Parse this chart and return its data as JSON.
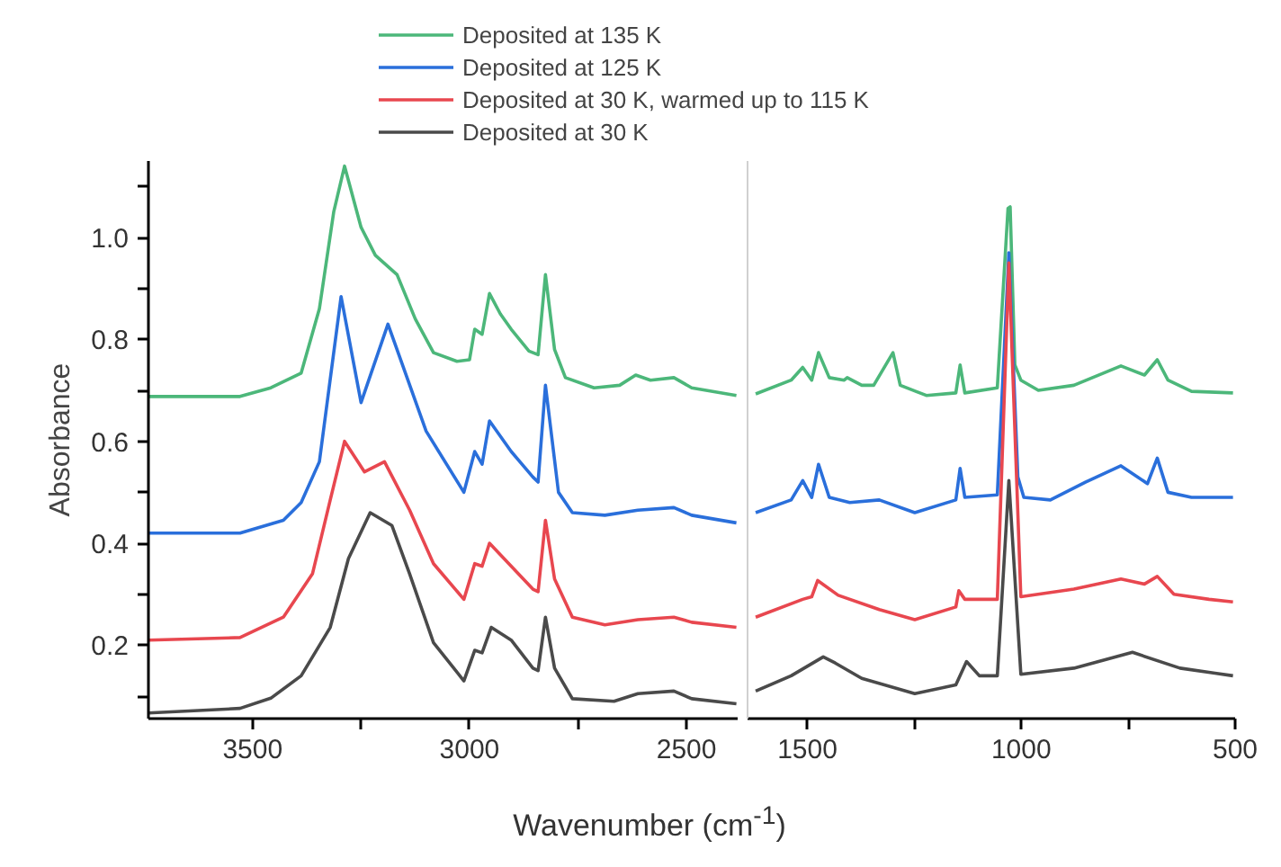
{
  "chart_data": [
    {
      "type": "line",
      "xlabel": "Wavenumber (cm$^{-1}$)",
      "ylabel": "Absorbance",
      "xlim": [
        3740,
        2380
      ],
      "ylim": [
        0.056,
        1.15
      ],
      "xticks": [
        3500,
        {
          "value": 3250,
          "label": null
        },
        3000,
        {
          "value": 2750,
          "label": null
        },
        2500
      ],
      "yticks": [
        {
          "value": 0.1,
          "label": null
        },
        0.2,
        {
          "value": 0.3,
          "label": null
        },
        0.4,
        {
          "value": 0.5,
          "label": null
        },
        0.6,
        {
          "value": 0.7,
          "label": null
        },
        0.8,
        {
          "value": 0.9,
          "label": null
        },
        {
          "value": 1.0,
          "label": "1.0"
        },
        {
          "value": 1.1,
          "label": null
        }
      ],
      "legend": "top",
      "grid": false,
      "series": [
        {
          "name": "Deposited at 135 K",
          "color": "#4cb77a",
          "x": [
            3740,
            3529,
            3458,
            3388,
            3346,
            3313,
            3288,
            3250,
            3217,
            3167,
            3125,
            3083,
            3029,
            3000,
            2988,
            2971,
            2954,
            2929,
            2904,
            2863,
            2842,
            2825,
            2804,
            2779,
            2713,
            2654,
            2617,
            2583,
            2529,
            2488,
            2385
          ],
          "values": [
            0.688,
            0.688,
            0.705,
            0.734,
            0.86,
            1.05,
            1.14,
            1.02,
            0.965,
            0.927,
            0.84,
            0.774,
            0.757,
            0.76,
            0.82,
            0.81,
            0.89,
            0.85,
            0.82,
            0.777,
            0.77,
            0.927,
            0.78,
            0.725,
            0.705,
            0.71,
            0.73,
            0.72,
            0.725,
            0.705,
            0.69
          ]
        },
        {
          "name": "Deposited at 125 K",
          "color": "#2a6fdb",
          "x": [
            3740,
            3529,
            3429,
            3388,
            3346,
            3296,
            3250,
            3188,
            3100,
            3013,
            2988,
            2971,
            2954,
            2904,
            2854,
            2842,
            2825,
            2795,
            2763,
            2688,
            2612,
            2529,
            2488,
            2385
          ],
          "values": [
            0.42,
            0.42,
            0.445,
            0.48,
            0.56,
            0.884,
            0.676,
            0.83,
            0.62,
            0.5,
            0.58,
            0.555,
            0.64,
            0.58,
            0.53,
            0.52,
            0.71,
            0.5,
            0.46,
            0.455,
            0.465,
            0.47,
            0.455,
            0.44
          ]
        },
        {
          "name": "Deposited at 30 K, warmed up to 115 K",
          "color": "#e8474f",
          "x": [
            3740,
            3529,
            3429,
            3362,
            3321,
            3288,
            3242,
            3196,
            3138,
            3083,
            3013,
            2988,
            2971,
            2954,
            2904,
            2854,
            2842,
            2825,
            2804,
            2763,
            2688,
            2612,
            2529,
            2488,
            2385
          ],
          "values": [
            0.21,
            0.215,
            0.255,
            0.34,
            0.485,
            0.6,
            0.54,
            0.56,
            0.465,
            0.36,
            0.29,
            0.36,
            0.355,
            0.4,
            0.355,
            0.31,
            0.305,
            0.445,
            0.33,
            0.255,
            0.24,
            0.25,
            0.255,
            0.245,
            0.235
          ]
        },
        {
          "name": "Deposited at 30 K",
          "color": "#4a4a4a",
          "x": [
            3740,
            3529,
            3458,
            3388,
            3321,
            3279,
            3229,
            3179,
            3138,
            3083,
            3013,
            2988,
            2971,
            2950,
            2904,
            2854,
            2842,
            2825,
            2804,
            2763,
            2667,
            2612,
            2529,
            2488,
            2385
          ],
          "values": [
            0.067,
            0.076,
            0.096,
            0.14,
            0.235,
            0.37,
            0.46,
            0.435,
            0.34,
            0.205,
            0.13,
            0.19,
            0.185,
            0.235,
            0.21,
            0.155,
            0.15,
            0.255,
            0.155,
            0.095,
            0.09,
            0.105,
            0.11,
            0.095,
            0.085
          ]
        }
      ]
    },
    {
      "type": "line",
      "xlim": [
        1640,
        500
      ],
      "ylim": [
        0.056,
        1.15
      ],
      "tick_labels": "x",
      "grid": false,
      "xticks": [
        1500,
        {
          "value": 1250,
          "label": null
        },
        1000,
        {
          "value": 750,
          "label": null
        },
        500
      ],
      "series": [
        {
          "color": "#4cb77a",
          "x": [
            1621,
            1538,
            1511,
            1490,
            1474,
            1449,
            1414,
            1407,
            1373,
            1345,
            1300,
            1283,
            1222,
            1153,
            1143,
            1132,
            1056,
            1031,
            1026,
            1015,
            1001,
            960,
            877,
            767,
            712,
            682,
            657,
            602,
            505
          ],
          "values": [
            0.693,
            0.72,
            0.745,
            0.72,
            0.774,
            0.725,
            0.72,
            0.725,
            0.71,
            0.71,
            0.774,
            0.71,
            0.69,
            0.695,
            0.75,
            0.695,
            0.705,
            1.057,
            1.06,
            0.75,
            0.72,
            0.7,
            0.71,
            0.748,
            0.73,
            0.76,
            0.72,
            0.698,
            0.695
          ]
        },
        {
          "color": "#2a6fdb",
          "x": [
            1621,
            1538,
            1511,
            1490,
            1474,
            1449,
            1401,
            1332,
            1249,
            1153,
            1143,
            1132,
            1056,
            1029,
            1008,
            994,
            932,
            850,
            767,
            705,
            682,
            657,
            602,
            505
          ],
          "values": [
            0.46,
            0.485,
            0.523,
            0.49,
            0.555,
            0.49,
            0.48,
            0.485,
            0.46,
            0.485,
            0.547,
            0.49,
            0.495,
            0.97,
            0.53,
            0.49,
            0.485,
            0.52,
            0.552,
            0.517,
            0.567,
            0.5,
            0.49,
            0.49
          ]
        },
        {
          "color": "#e8474f",
          "x": [
            1621,
            1511,
            1490,
            1476,
            1428,
            1332,
            1249,
            1153,
            1146,
            1132,
            1056,
            1029,
            1001,
            877,
            767,
            712,
            682,
            643,
            561,
            505
          ],
          "values": [
            0.255,
            0.29,
            0.295,
            0.327,
            0.298,
            0.27,
            0.25,
            0.275,
            0.307,
            0.29,
            0.29,
            0.95,
            0.295,
            0.31,
            0.33,
            0.32,
            0.335,
            0.3,
            0.29,
            0.285
          ]
        },
        {
          "color": "#4a4a4a",
          "x": [
            1621,
            1538,
            1463,
            1435,
            1373,
            1249,
            1153,
            1128,
            1098,
            1056,
            1029,
            1001,
            877,
            740,
            629,
            547,
            505
          ],
          "values": [
            0.11,
            0.14,
            0.177,
            0.165,
            0.135,
            0.105,
            0.122,
            0.168,
            0.14,
            0.14,
            0.523,
            0.143,
            0.155,
            0.186,
            0.155,
            0.145,
            0.14
          ]
        }
      ]
    }
  ]
}
